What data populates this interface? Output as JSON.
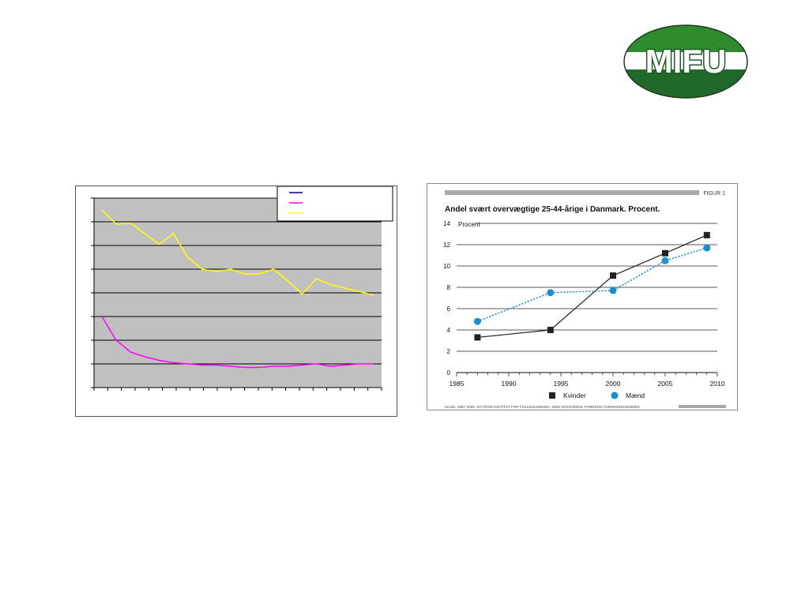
{
  "logo": {
    "text": "MIFU",
    "colors": {
      "top": "#2e8b2e",
      "band": "#ffffff",
      "bottom": "#1f6a2a",
      "text": "#ffffff"
    }
  },
  "chart_data": [
    {
      "type": "line",
      "title": "",
      "xlabel": "",
      "ylabel": "",
      "grid": true,
      "legend": "top-right",
      "plot_background": "#c0c0c0",
      "ylim": [
        0,
        8
      ],
      "x_count": 21,
      "series": [
        {
          "color": "#000080",
          "values": []
        },
        {
          "color": "#ff00ff",
          "values": [
            3.0,
            2.0,
            1.5,
            1.3,
            1.15,
            1.05,
            1.0,
            0.95,
            0.95,
            0.9,
            0.85,
            0.85,
            0.9,
            0.9,
            0.95,
            1.0,
            0.9,
            0.95,
            1.0,
            1.0
          ]
        },
        {
          "color": "#ffff00",
          "values": [
            7.5,
            6.9,
            6.95,
            6.5,
            6.05,
            6.5,
            5.5,
            5.0,
            4.9,
            5.0,
            4.8,
            4.8,
            5.0,
            4.5,
            3.95,
            4.6,
            4.35,
            4.2,
            4.05,
            3.9
          ]
        }
      ]
    },
    {
      "type": "line",
      "figure_label": "FIGUR 1",
      "title": "Andel svært overvægtige 25-44-årige i Danmark. Procent.",
      "ylabel": "Procent",
      "xlabel": "",
      "xlim": [
        1985,
        2010
      ],
      "ylim": [
        0,
        14
      ],
      "xticks": [
        1985,
        1990,
        1995,
        2000,
        2005,
        2010
      ],
      "yticks": [
        0,
        2,
        4,
        6,
        8,
        10,
        12,
        14
      ],
      "grid": true,
      "legend": "bottom",
      "series": [
        {
          "name": "Kvinder",
          "color": "#222222",
          "marker": "square",
          "style": "solid",
          "points": [
            [
              1987,
              3.3
            ],
            [
              1994,
              4.0
            ],
            [
              2000,
              9.1
            ],
            [
              2005,
              11.2
            ],
            [
              2009,
              12.9
            ]
          ]
        },
        {
          "name": "Mænd",
          "color": "#1a8fd0",
          "marker": "circle",
          "style": "dotted",
          "points": [
            [
              1987,
              4.8
            ],
            [
              1994,
              7.5
            ],
            [
              2000,
              7.7
            ],
            [
              2005,
              10.5
            ],
            [
              2009,
              11.7
            ]
          ]
        }
      ],
      "source": "KILDE: 1987-2005: STATENS INSTITUT FOR FOLKESUNDHED, 2009: ROCKWOOL FONDENS FORSKNINGSENHED"
    }
  ]
}
